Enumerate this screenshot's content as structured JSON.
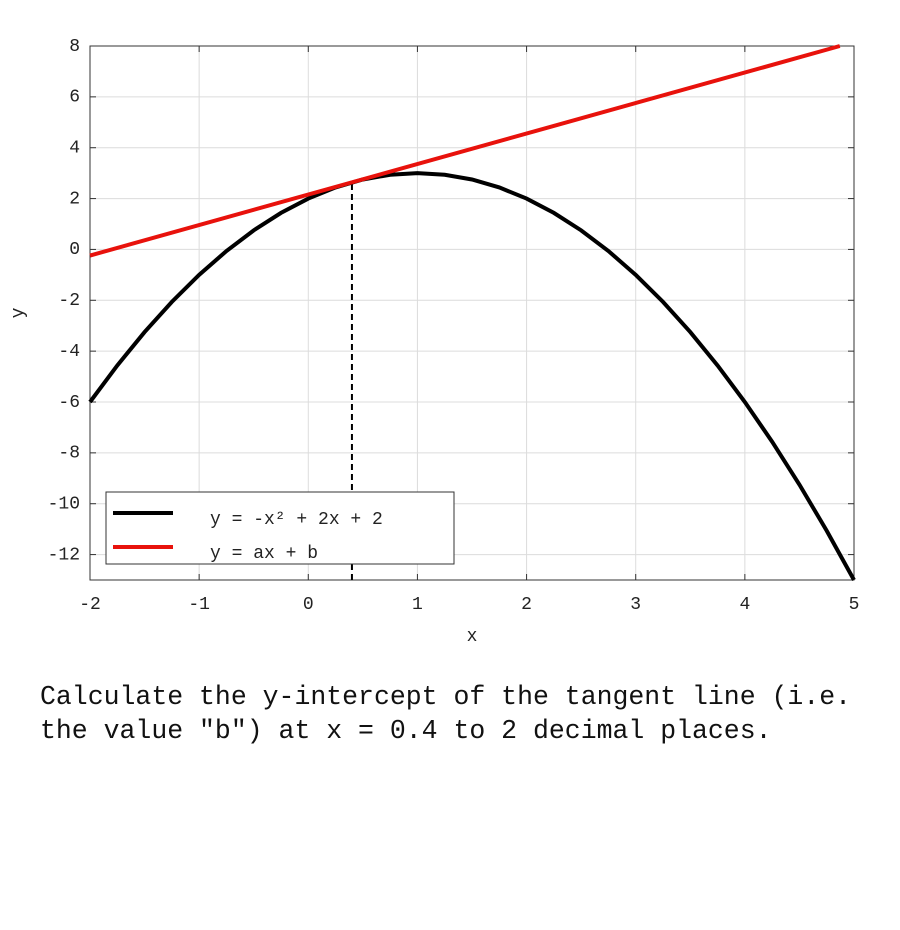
{
  "chart_data": {
    "type": "line",
    "xlabel": "x",
    "ylabel": "y",
    "xlim": [
      -2,
      5
    ],
    "ylim": [
      -13,
      8
    ],
    "xticks": [
      -2,
      -1,
      0,
      1,
      2,
      3,
      4,
      5
    ],
    "yticks": [
      8,
      6,
      4,
      2,
      0,
      -2,
      -4,
      -6,
      -8,
      -10,
      -12
    ],
    "grid": true,
    "legend": "lower left",
    "series": [
      {
        "name": "y = -x² + 2x + 2",
        "color": "#000000",
        "x": [
          -2,
          -1.75,
          -1.5,
          -1.25,
          -1,
          -0.75,
          -0.5,
          -0.25,
          0,
          0.25,
          0.5,
          0.75,
          1,
          1.25,
          1.5,
          1.75,
          2,
          2.25,
          2.5,
          2.75,
          3,
          3.25,
          3.5,
          3.75,
          4,
          4.25,
          4.5,
          4.75,
          5
        ],
        "values": [
          -6,
          -4.5625,
          -3.25,
          -2.0625,
          -1,
          -0.0625,
          0.75,
          1.4375,
          2,
          2.4375,
          2.75,
          2.9375,
          3,
          2.9375,
          2.75,
          2.4375,
          2,
          1.4375,
          0.75,
          -0.0625,
          -1,
          -2.0625,
          -3.25,
          -4.5625,
          -6,
          -7.5625,
          -9.25,
          -11.0625,
          -13
        ]
      },
      {
        "name": "y = ax + b",
        "color": "#e8120c",
        "x": [
          -2,
          4.87
        ],
        "values": [
          -0.24,
          8
        ]
      }
    ],
    "vline": {
      "x": 0.4,
      "ymax": 2.64
    }
  },
  "question": "Calculate the y-intercept of the tangent line (i.e. the value \"b\") at x = 0.4 to 2 decimal places."
}
